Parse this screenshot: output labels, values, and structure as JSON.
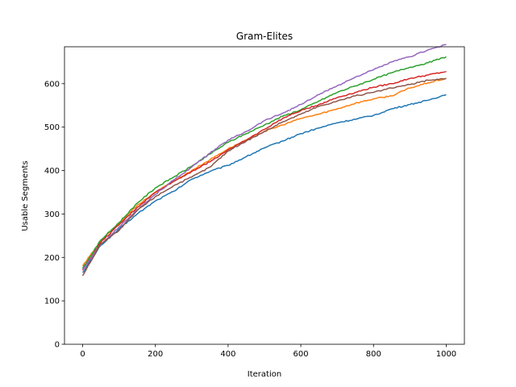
{
  "chart_data": {
    "type": "line",
    "title": "Gram-Elites",
    "xlabel": "Iteration",
    "ylabel": "Usable Segments",
    "xlim": [
      -50,
      1050
    ],
    "ylim": [
      0,
      685
    ],
    "xticks": [
      0,
      200,
      400,
      600,
      800,
      1000
    ],
    "yticks": [
      0,
      100,
      200,
      300,
      400,
      500,
      600
    ],
    "grid": false,
    "legend": "none",
    "series": [
      {
        "color": "#1f77b4",
        "x": [
          0,
          50,
          100,
          150,
          200,
          250,
          300,
          350,
          400,
          450,
          500,
          550,
          600,
          650,
          700,
          750,
          800,
          850,
          900,
          950,
          1000
        ],
        "values": [
          165,
          228,
          265,
          300,
          330,
          352,
          380,
          398,
          412,
          432,
          452,
          468,
          485,
          498,
          510,
          518,
          527,
          542,
          552,
          562,
          575
        ]
      },
      {
        "color": "#ff7f0e",
        "x": [
          0,
          50,
          100,
          150,
          200,
          250,
          300,
          350,
          400,
          450,
          500,
          550,
          600,
          650,
          700,
          750,
          800,
          850,
          900,
          950,
          1000
        ],
        "values": [
          180,
          238,
          278,
          320,
          350,
          375,
          400,
          425,
          450,
          470,
          490,
          505,
          520,
          530,
          542,
          555,
          565,
          572,
          590,
          602,
          612
        ]
      },
      {
        "color": "#2ca02c",
        "x": [
          0,
          50,
          100,
          150,
          200,
          250,
          300,
          350,
          400,
          450,
          500,
          550,
          600,
          650,
          700,
          750,
          800,
          850,
          900,
          950,
          1000
        ],
        "values": [
          175,
          240,
          280,
          325,
          360,
          385,
          410,
          438,
          465,
          485,
          505,
          525,
          540,
          560,
          580,
          595,
          610,
          625,
          638,
          648,
          662
        ]
      },
      {
        "color": "#d62728",
        "x": [
          0,
          50,
          100,
          150,
          200,
          250,
          300,
          350,
          400,
          450,
          500,
          550,
          600,
          650,
          700,
          750,
          800,
          850,
          900,
          950,
          1000
        ],
        "values": [
          170,
          235,
          275,
          315,
          350,
          375,
          398,
          420,
          448,
          470,
          495,
          520,
          538,
          552,
          568,
          580,
          592,
          600,
          612,
          620,
          628
        ]
      },
      {
        "color": "#9467bd",
        "x": [
          0,
          50,
          100,
          150,
          200,
          250,
          300,
          350,
          400,
          450,
          500,
          550,
          600,
          650,
          700,
          750,
          800,
          850,
          900,
          950,
          1000
        ],
        "values": [
          172,
          230,
          270,
          310,
          345,
          378,
          408,
          440,
          470,
          490,
          515,
          532,
          552,
          575,
          595,
          615,
          632,
          650,
          662,
          678,
          690
        ]
      },
      {
        "color": "#8c564b",
        "x": [
          0,
          50,
          100,
          150,
          200,
          250,
          300,
          350,
          400,
          450,
          500,
          550,
          600,
          650,
          700,
          750,
          800,
          850,
          900,
          950,
          1000
        ],
        "values": [
          158,
          232,
          262,
          308,
          340,
          365,
          385,
          408,
          445,
          468,
          490,
          512,
          530,
          548,
          560,
          572,
          580,
          590,
          598,
          608,
          612
        ]
      }
    ]
  }
}
